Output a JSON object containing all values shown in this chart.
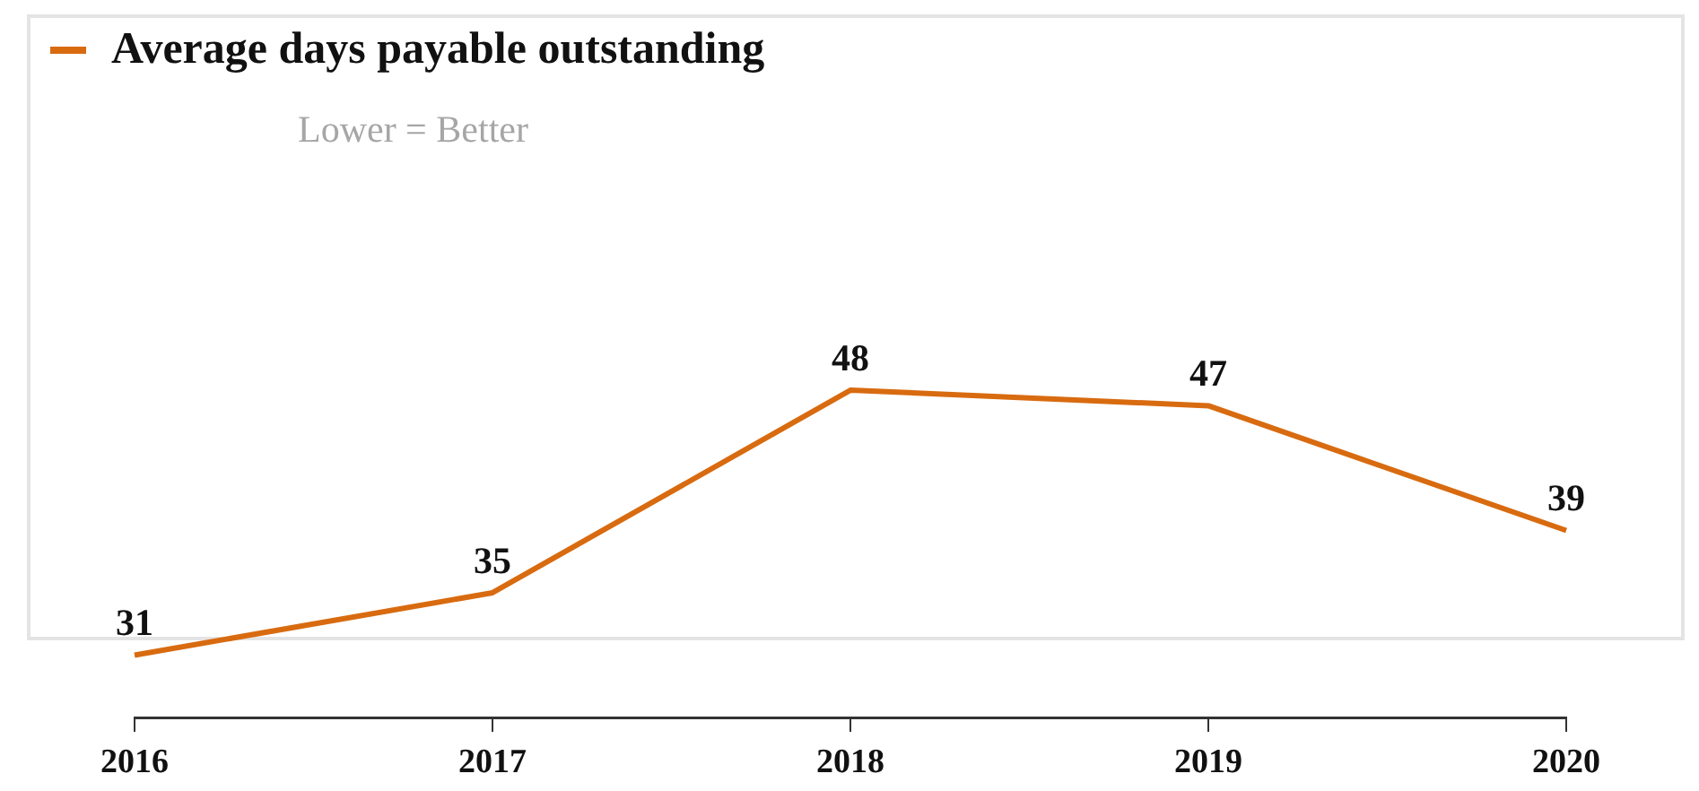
{
  "chart_data": {
    "type": "line",
    "categories": [
      "2016",
      "2017",
      "2018",
      "2019",
      "2020"
    ],
    "series": [
      {
        "name": "Average days payable outstanding",
        "color": "#d86b10",
        "values": [
          31,
          35,
          48,
          47,
          39
        ]
      }
    ],
    "annotations": [
      "Lower = Better"
    ],
    "ylim": [
      27,
      72
    ],
    "tick_labels": "x",
    "data_labels": true,
    "grid": false,
    "legend": "top left",
    "marker": "none",
    "line_style": "solid"
  }
}
